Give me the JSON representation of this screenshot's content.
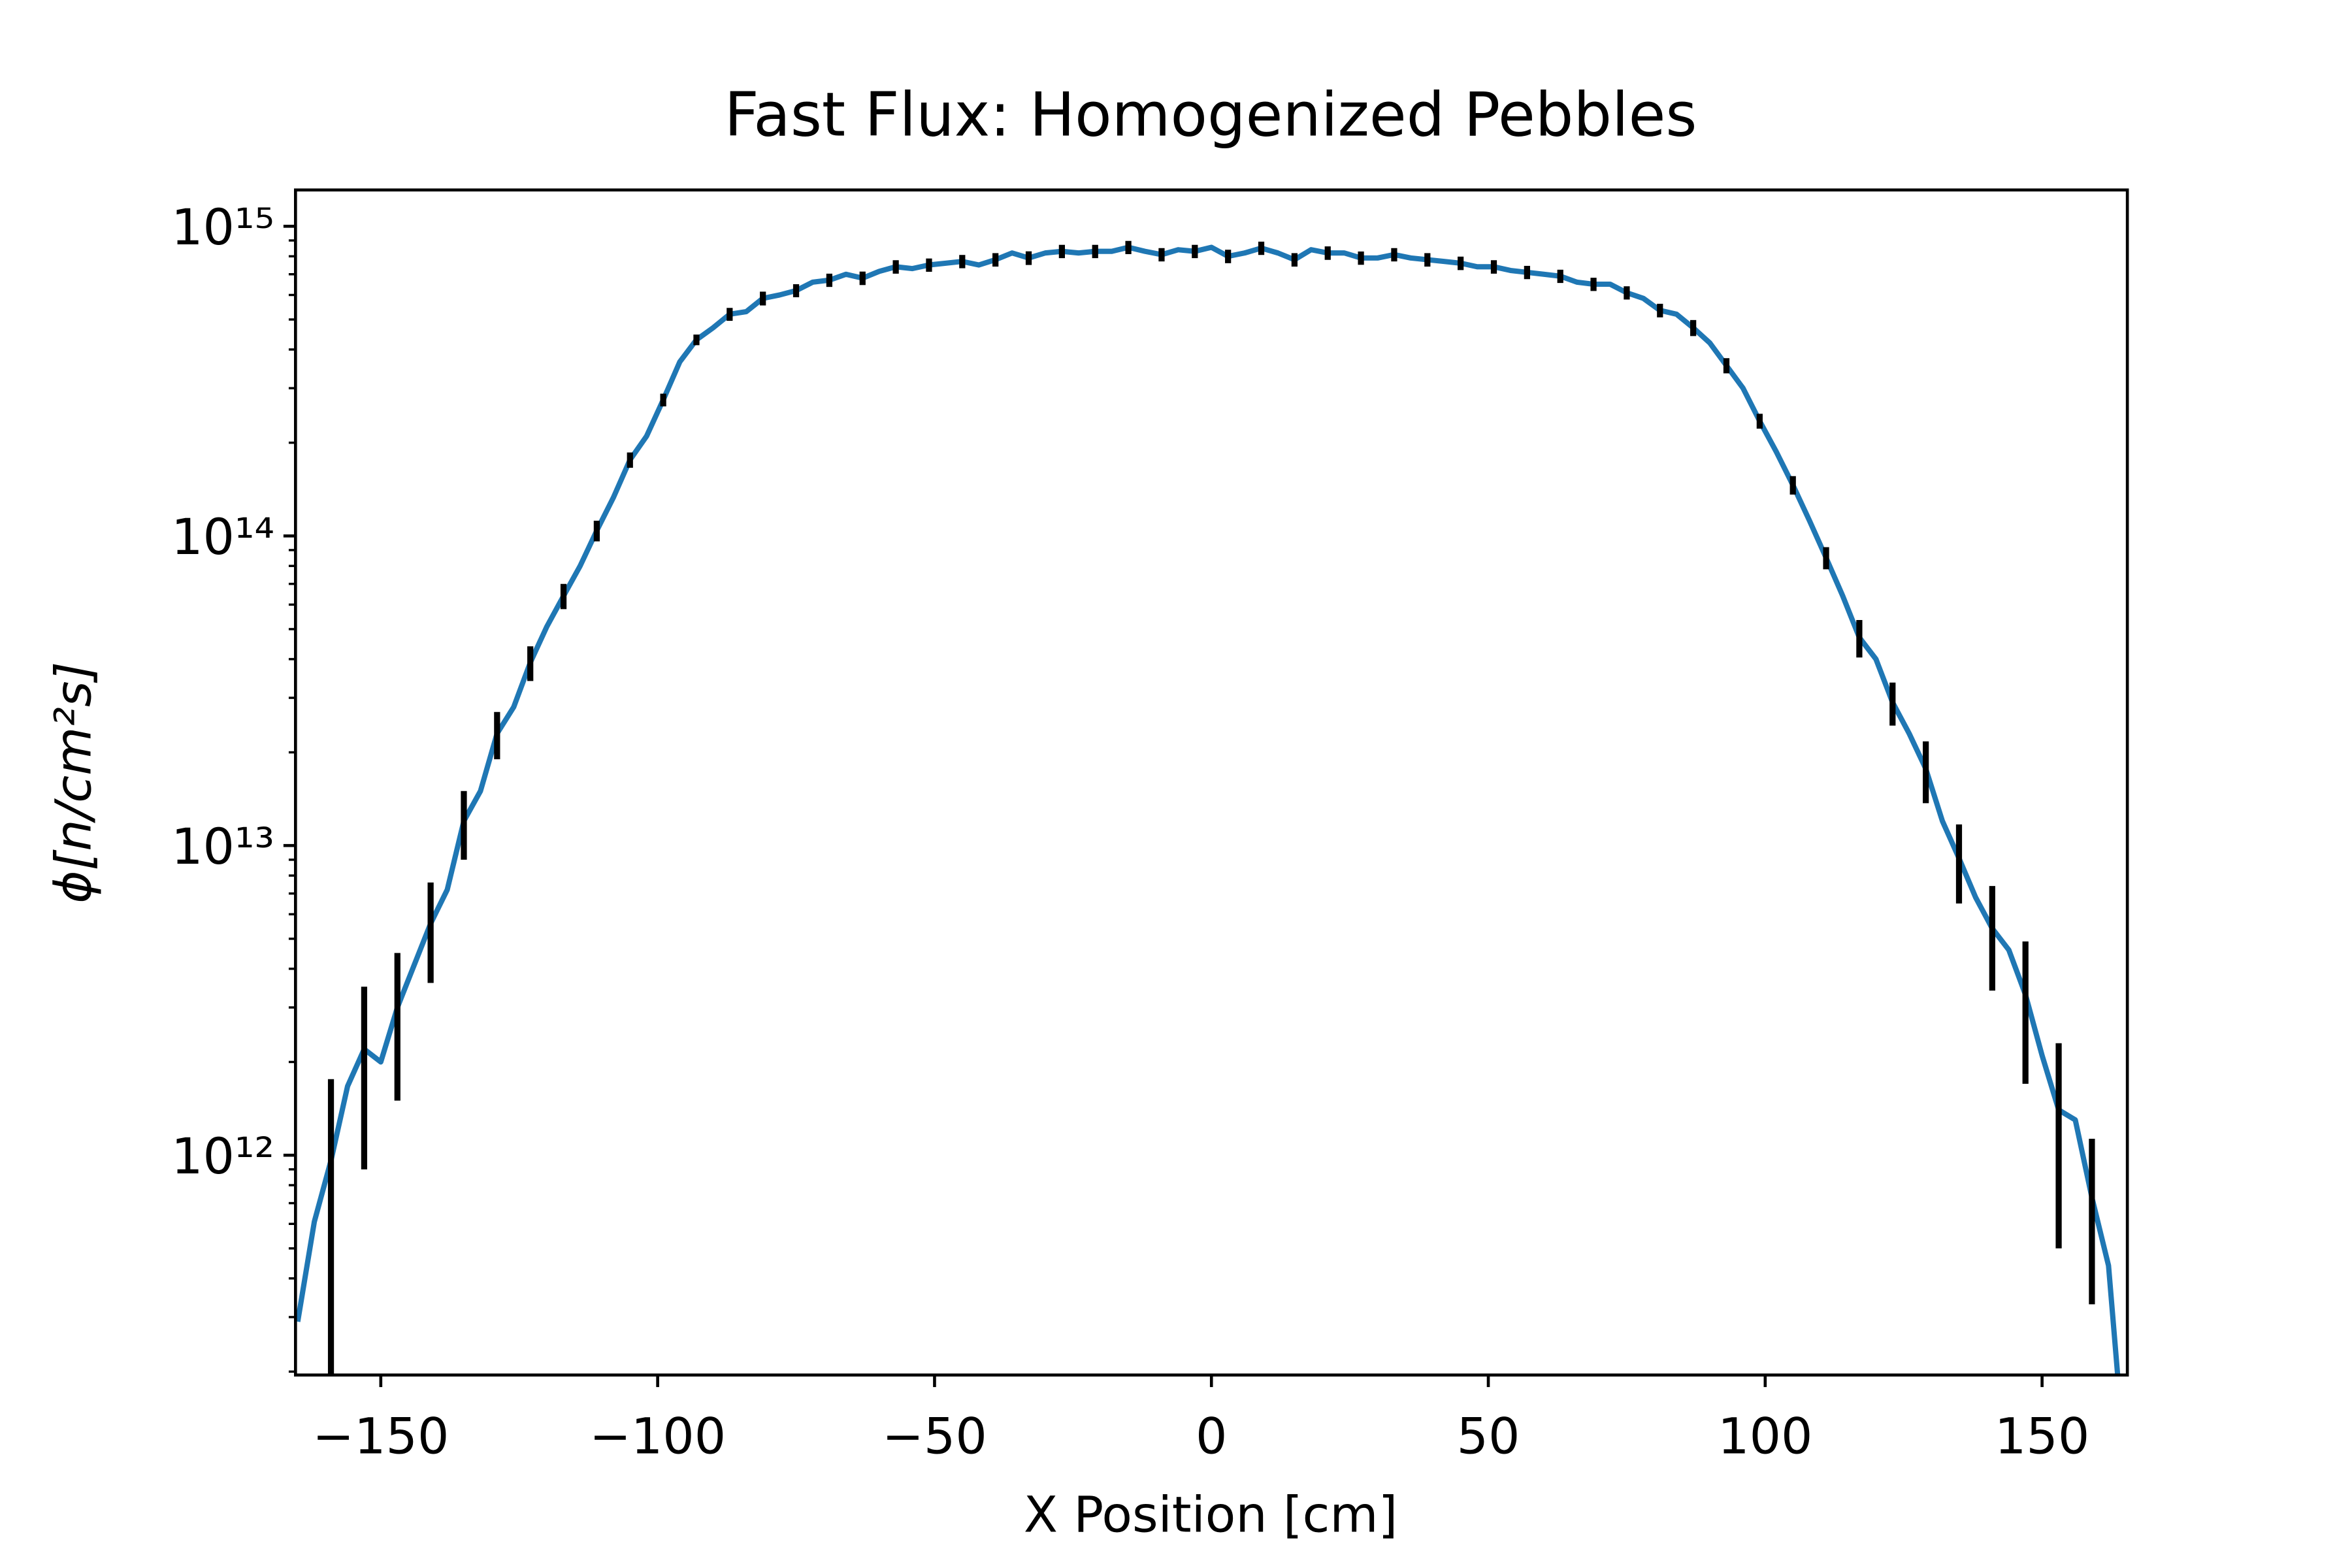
{
  "chart_data": {
    "type": "line",
    "title": "Fast Flux: Homogenized Pebbles",
    "xlabel": "X Position [cm]",
    "ylabel": "ϕ[n/cm²s]",
    "log_y": true,
    "xlim": [
      -165.4,
      165.4
    ],
    "ylim": [
      195000000000.0,
      1310000000000000.0
    ],
    "xticks": [
      {
        "value": -150,
        "label": "−150"
      },
      {
        "value": -100,
        "label": "−100"
      },
      {
        "value": -50,
        "label": "−50"
      },
      0,
      50,
      100,
      150
    ],
    "yticks": [
      {
        "value": 1000000000000.0,
        "label": "10¹²"
      },
      {
        "value": 10000000000000.0,
        "label": "10¹³"
      },
      {
        "value": 100000000000000.0,
        "label": "10¹⁴"
      },
      {
        "value": 1000000000000000.0,
        "label": "10¹⁵"
      }
    ],
    "yminorticks": [
      200000000000.0,
      300000000000.0,
      400000000000.0,
      500000000000.0,
      600000000000.0,
      700000000000.0,
      800000000000.0,
      900000000000.0,
      2000000000000.0,
      3000000000000.0,
      4000000000000.0,
      5000000000000.0,
      6000000000000.0,
      7000000000000.0,
      8000000000000.0,
      9000000000000.0,
      20000000000000.0,
      30000000000000.0,
      40000000000000.0,
      50000000000000.0,
      60000000000000.0,
      70000000000000.0,
      80000000000000.0,
      90000000000000.0,
      200000000000000.0,
      300000000000000.0,
      400000000000000.0,
      500000000000000.0,
      600000000000000.0,
      700000000000000.0,
      800000000000000.0,
      900000000000000.0
    ],
    "x": [
      -165,
      -162,
      -159,
      -156,
      -153,
      -150,
      -147,
      -144,
      -141,
      -138,
      -135,
      -132,
      -129,
      -126,
      -123,
      -120,
      -117,
      -114,
      -111,
      -108,
      -105,
      -102,
      -99,
      -96,
      -93,
      -90,
      -87,
      -84,
      -81,
      -78,
      -75,
      -72,
      -69,
      -66,
      -63,
      -60,
      -57,
      -54,
      -51,
      -48,
      -45,
      -42,
      -39,
      -36,
      -33,
      -30,
      -27,
      -24,
      -21,
      -18,
      -15,
      -12,
      -9,
      -6,
      -3,
      0,
      3,
      6,
      9,
      12,
      15,
      18,
      21,
      24,
      27,
      30,
      33,
      36,
      39,
      42,
      45,
      48,
      51,
      54,
      57,
      60,
      63,
      66,
      69,
      72,
      75,
      78,
      81,
      84,
      87,
      90,
      93,
      96,
      99,
      102,
      105,
      108,
      111,
      114,
      117,
      120,
      123,
      126,
      129,
      132,
      135,
      138,
      141,
      144,
      147,
      150,
      153,
      156,
      159,
      162,
      165
    ],
    "series": [
      {
        "color": "#1f77b4",
        "error_color": "#000000",
        "values": [
          290000000000.0,
          610000000000.0,
          960000000000.0,
          1670000000000.0,
          2200000000000.0,
          2000000000000.0,
          3000000000000.0,
          4100000000000.0,
          5600000000000.0,
          7200000000000.0,
          12000000000000.0,
          15000000000000.0,
          23000000000000.0,
          28000000000000.0,
          39000000000000.0,
          51000000000000.0,
          64000000000000.0,
          80000000000000.0,
          104000000000000.0,
          133000000000000.0,
          176000000000000.0,
          210000000000000.0,
          275000000000000.0,
          365000000000000.0,
          430000000000000.0,
          470000000000000.0,
          520000000000000.0,
          530000000000000.0,
          585000000000000.0,
          600000000000000.0,
          620000000000000.0,
          660000000000000.0,
          670000000000000.0,
          700000000000000.0,
          680000000000000.0,
          715000000000000.0,
          740000000000000.0,
          730000000000000.0,
          750000000000000.0,
          760000000000000.0,
          770000000000000.0,
          750000000000000.0,
          780000000000000.0,
          820000000000000.0,
          790000000000000.0,
          820000000000000.0,
          830000000000000.0,
          820000000000000.0,
          830000000000000.0,
          830000000000000.0,
          855000000000000.0,
          830000000000000.0,
          810000000000000.0,
          840000000000000.0,
          830000000000000.0,
          855000000000000.0,
          800000000000000.0,
          820000000000000.0,
          850000000000000.0,
          820000000000000.0,
          780000000000000.0,
          840000000000000.0,
          820000000000000.0,
          820000000000000.0,
          790000000000000.0,
          790000000000000.0,
          810000000000000.0,
          790000000000000.0,
          780000000000000.0,
          770000000000000.0,
          760000000000000.0,
          740000000000000.0,
          740000000000000.0,
          720000000000000.0,
          710000000000000.0,
          700000000000000.0,
          690000000000000.0,
          660000000000000.0,
          650000000000000.0,
          650000000000000.0,
          610000000000000.0,
          585000000000000.0,
          535000000000000.0,
          520000000000000.0,
          470000000000000.0,
          420000000000000.0,
          355000000000000.0,
          300000000000000.0,
          235000000000000.0,
          187000000000000.0,
          146000000000000.0,
          112000000000000.0,
          85000000000000.0,
          64000000000000.0,
          47000000000000.0,
          40000000000000.0,
          29000000000000.0,
          23000000000000.0,
          17700000000000.0,
          12000000000000.0,
          9100000000000.0,
          6800000000000.0,
          5400000000000.0,
          4600000000000.0,
          3300000000000.0,
          2100000000000.0,
          1400000000000.0,
          1300000000000.0,
          730000000000.0,
          440000000000.0,
          100000000000.0
        ],
        "errors": [
          null,
          null,
          800000000000.0,
          null,
          1300000000000.0,
          null,
          1500000000000.0,
          null,
          2000000000000.0,
          null,
          3000000000000.0,
          null,
          4000000000000.0,
          null,
          5000000000000.0,
          null,
          6000000000000.0,
          null,
          8000000000000.0,
          null,
          10000000000000.0,
          null,
          13000000000000.0,
          null,
          17000000000000.0,
          null,
          25000000000000.0,
          null,
          30000000000000.0,
          null,
          30000000000000.0,
          null,
          33000000000000.0,
          null,
          34000000000000.0,
          null,
          37000000000000.0,
          null,
          37000000000000.0,
          null,
          38000000000000.0,
          null,
          39000000000000.0,
          null,
          40000000000000.0,
          null,
          41000000000000.0,
          null,
          41000000000000.0,
          null,
          42000000000000.0,
          null,
          40000000000000.0,
          null,
          41000000000000.0,
          null,
          40000000000000.0,
          null,
          42000000000000.0,
          null,
          39000000000000.0,
          null,
          41000000000000.0,
          null,
          39000000000000.0,
          null,
          40000000000000.0,
          null,
          39000000000000.0,
          null,
          38000000000000.0,
          null,
          37000000000000.0,
          null,
          35000000000000.0,
          null,
          34000000000000.0,
          null,
          32000000000000.0,
          null,
          30000000000000.0,
          null,
          27000000000000.0,
          null,
          28000000000000.0,
          null,
          20000000000000.0,
          null,
          13000000000000.0,
          null,
          10000000000000.0,
          null,
          7000000000000.0,
          null,
          6500000000000.0,
          null,
          4600000000000.0,
          null,
          4000000000000.0,
          null,
          2600000000000.0,
          null,
          2000000000000.0,
          null,
          1600000000000.0,
          null,
          900000000000.0,
          null,
          400000000000.0,
          null,
          null
        ]
      }
    ]
  }
}
